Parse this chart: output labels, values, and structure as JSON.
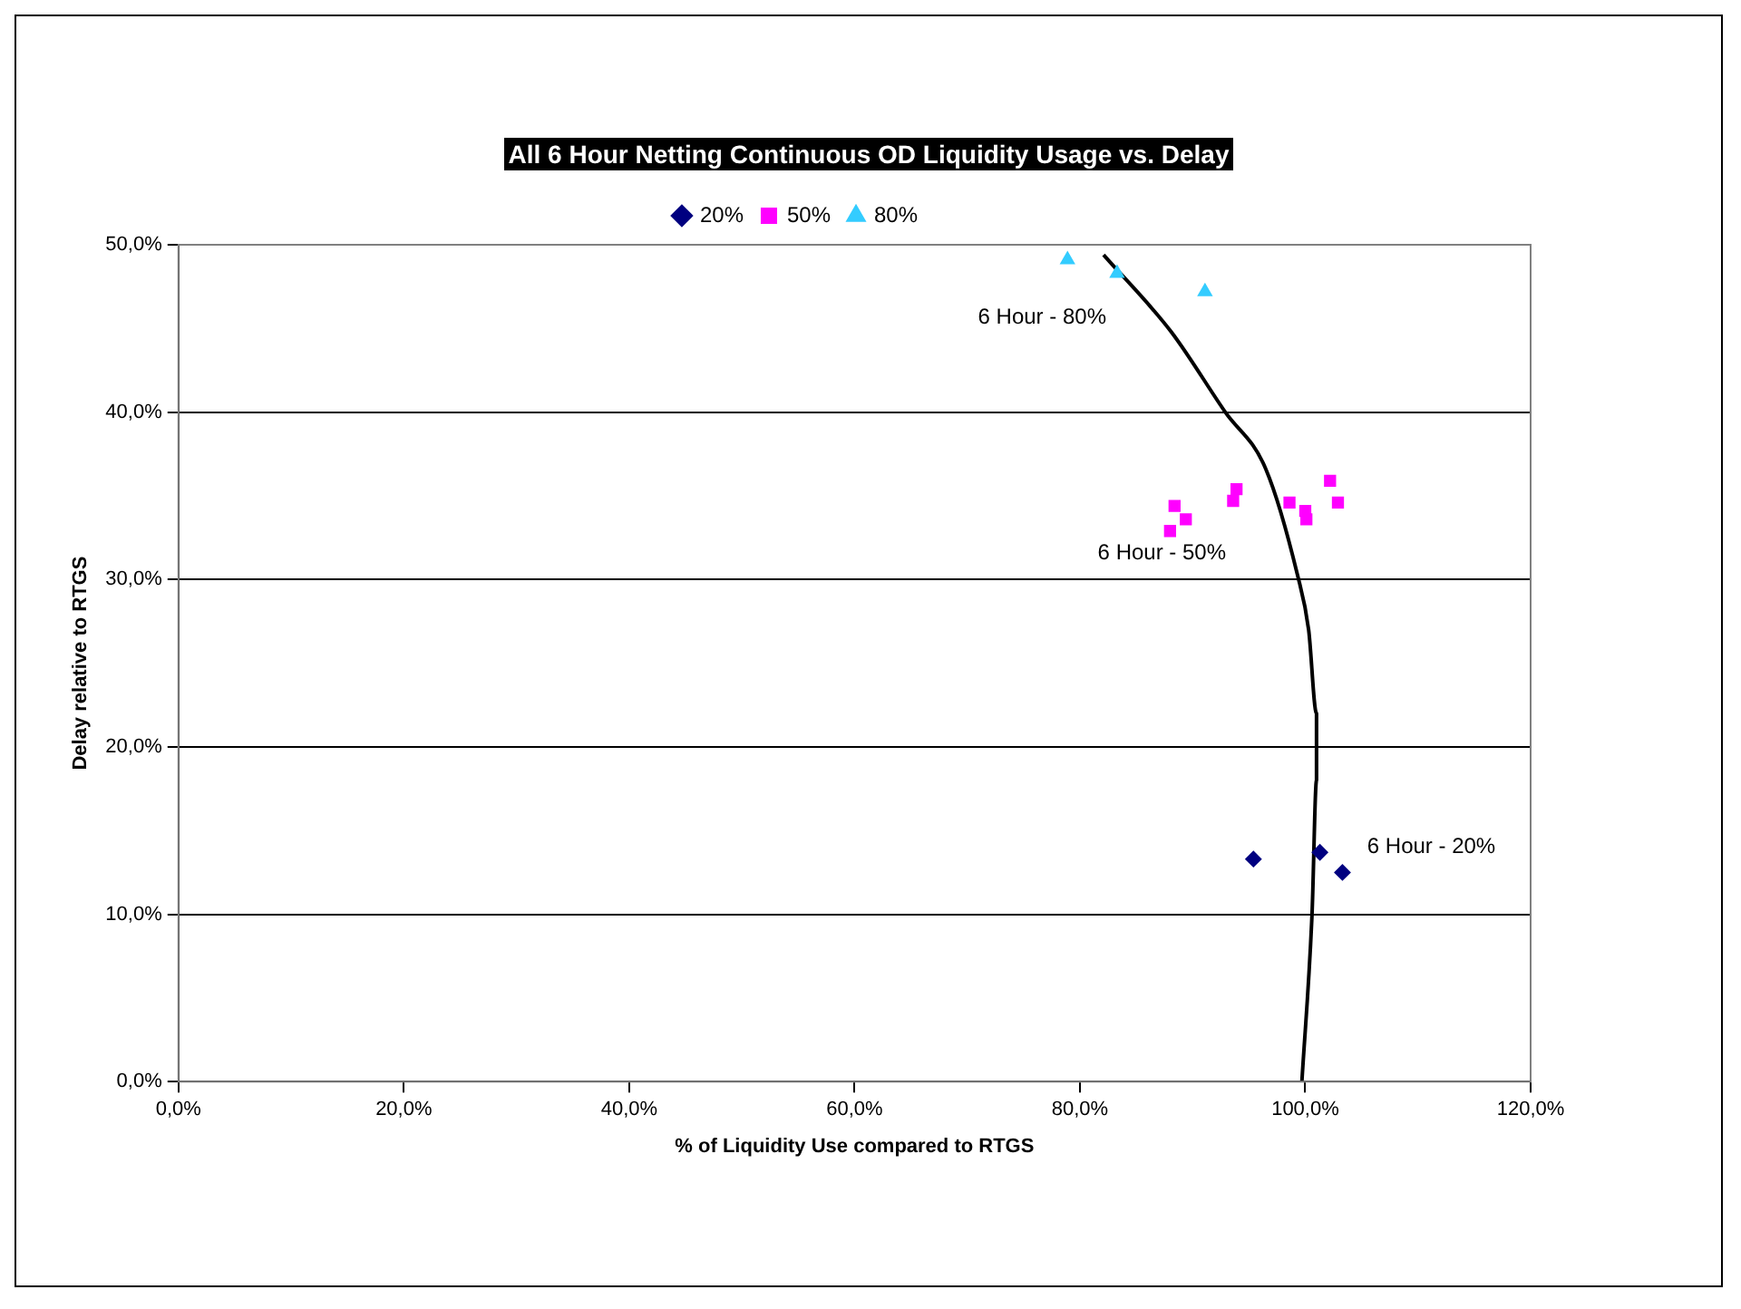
{
  "chart_data": {
    "type": "scatter",
    "title": "All 6 Hour Netting Continuous OD Liquidity Usage vs. Delay",
    "xlabel": "% of Liquidity Use compared to RTGS",
    "ylabel": "Delay relative to RTGS",
    "series": [
      {
        "name": "20%",
        "color": "#000080",
        "marker": "diamond",
        "x": [
          95.4,
          101.3,
          103.3
        ],
        "values": [
          13.3,
          13.7,
          12.5
        ]
      },
      {
        "name": "50%",
        "color": "#ff00ff",
        "marker": "square",
        "x": [
          88.4,
          89.4,
          88.0,
          93.6,
          93.9,
          98.6,
          100.0,
          100.1,
          102.2,
          102.9
        ],
        "values": [
          34.4,
          33.6,
          32.9,
          34.7,
          35.4,
          34.6,
          34.1,
          33.6,
          35.9,
          34.6
        ]
      },
      {
        "name": "80%",
        "color": "#33ccff",
        "marker": "triangle",
        "x": [
          78.9,
          83.3,
          91.1
        ],
        "values": [
          49.1,
          48.3,
          47.2
        ]
      },
      {
        "type": "line",
        "color": "#000000",
        "marker": "none",
        "line_style": "solid",
        "x": [
          99.7,
          100.6,
          101.0,
          101.0,
          100.3,
          99.3,
          96.5,
          92.9,
          88.1,
          82.1
        ],
        "values": [
          0,
          10,
          18,
          22,
          27,
          30.3,
          36.6,
          40,
          44.8,
          49.4
        ]
      }
    ],
    "annotations": [
      "6 Hour - 20%",
      "6 Hour - 50%",
      "6 Hour - 80%"
    ],
    "xlim": [
      0,
      120
    ],
    "xticks": [
      {
        "value": 0,
        "label": "0,0%"
      },
      {
        "value": 20,
        "label": "20,0%"
      },
      {
        "value": 40,
        "label": "40,0%"
      },
      {
        "value": 60,
        "label": "60,0%"
      },
      {
        "value": 80,
        "label": "80,0%"
      },
      {
        "value": 100,
        "label": "100,0%"
      },
      {
        "value": 120,
        "label": "120,0%"
      }
    ],
    "ylim": [
      0,
      50
    ],
    "yticks": [
      {
        "value": 0,
        "label": "0,0%"
      },
      {
        "value": 10,
        "label": "10,0%"
      },
      {
        "value": 20,
        "label": "20,0%"
      },
      {
        "value": 30,
        "label": "30,0%"
      },
      {
        "value": 40,
        "label": "40,0%"
      },
      {
        "value": 50,
        "label": "50,0%"
      }
    ],
    "grid": "y",
    "legend": "top"
  }
}
